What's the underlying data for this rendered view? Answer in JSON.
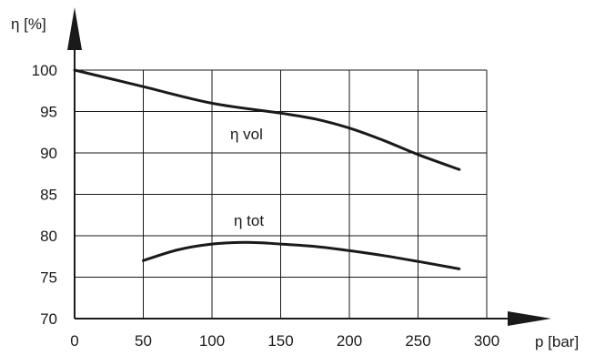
{
  "chart_data": {
    "type": "line",
    "ylabel": "η [%]",
    "xlabel": "p [bar]",
    "xlim": [
      0,
      300
    ],
    "ylim": [
      70,
      100
    ],
    "x_ticks": [
      "0",
      "50",
      "100",
      "150",
      "200",
      "250",
      "300"
    ],
    "y_ticks": [
      "70",
      "75",
      "80",
      "85",
      "90",
      "95",
      "100"
    ],
    "grid": true,
    "colors": {
      "line": "#1a1a1a",
      "grid": "#1a1a1a",
      "axis": "#1a1a1a"
    },
    "series": [
      {
        "name": "η vol",
        "x": [
          0,
          50,
          100,
          150,
          175,
          200,
          225,
          250,
          280
        ],
        "y": [
          100,
          98,
          96,
          94.8,
          94.1,
          93,
          91.5,
          89.8,
          88
        ]
      },
      {
        "name": "η tot",
        "x": [
          50,
          75,
          100,
          125,
          150,
          175,
          200,
          225,
          250,
          280
        ],
        "y": [
          77,
          78.3,
          79,
          79.2,
          79,
          78.7,
          78.2,
          77.6,
          76.9,
          76
        ]
      }
    ]
  }
}
